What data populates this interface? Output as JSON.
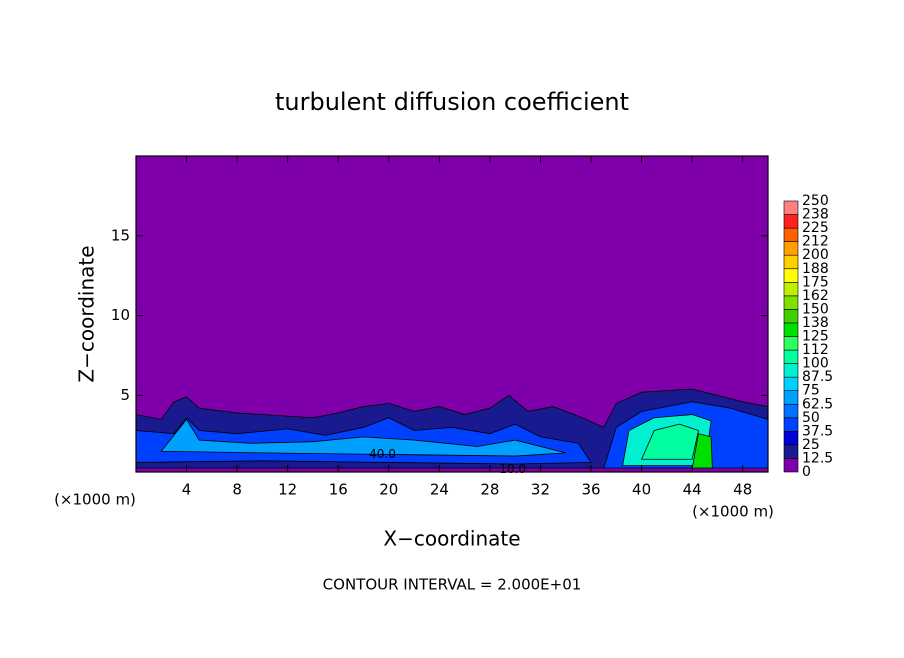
{
  "chart_data": {
    "type": "contour",
    "title": "turbulent diffusion coefficient",
    "xlabel": "X−coordinate",
    "ylabel": "Z−coordinate",
    "x_unit": "(×1000 m)",
    "x_unit_right": "(×1000 m)",
    "note": "CONTOUR INTERVAL = 2.000E+01",
    "xlim": [
      0,
      50
    ],
    "xticks": [
      4,
      8,
      12,
      16,
      20,
      24,
      28,
      32,
      36,
      40,
      44,
      48
    ],
    "ylim": [
      0.2,
      20
    ],
    "yticks": [
      5,
      10,
      15
    ],
    "background_level": 0,
    "colorbar_ticks": [
      0,
      12.5,
      25,
      37.5,
      50,
      62.5,
      75,
      87.5,
      100,
      {
        "value": 112.5,
        "label": "112"
      },
      125,
      {
        "value": 137.5,
        "label": "138"
      },
      150,
      {
        "value": 162.5,
        "label": "162"
      },
      175,
      {
        "value": 187.5,
        "label": "188"
      },
      200,
      {
        "value": 212.5,
        "label": "212"
      },
      225,
      {
        "value": 237.5,
        "label": "238"
      },
      250
    ],
    "colors": [
      "#7f00aa",
      "#1a1a90",
      "#0000d8",
      "#0040ff",
      "#0070ff",
      "#00a0ff",
      "#00d0ff",
      "#00f0d0",
      "#00ffa0",
      "#30ff60",
      "#00e000",
      "#40d000",
      "#80e000",
      "#c0f000",
      "#ffff00",
      "#ffd000",
      "#ffa000",
      "#ff6000",
      "#ff2020",
      "#ff8080"
    ],
    "regions": [
      {
        "level": 12.5,
        "points": [
          [
            0,
            0.3
          ],
          [
            0,
            3.8
          ],
          [
            2,
            3.5
          ],
          [
            3,
            4.6
          ],
          [
            4,
            4.9
          ],
          [
            5,
            4.2
          ],
          [
            8,
            3.9
          ],
          [
            12,
            3.7
          ],
          [
            14,
            3.6
          ],
          [
            16,
            3.9
          ],
          [
            18,
            4.3
          ],
          [
            20,
            4.5
          ],
          [
            22,
            4.0
          ],
          [
            24,
            4.3
          ],
          [
            26,
            3.8
          ],
          [
            28,
            4.2
          ],
          [
            29.5,
            5
          ],
          [
            31,
            4.0
          ],
          [
            33,
            4.3
          ],
          [
            35,
            3.7
          ],
          [
            37,
            3.0
          ],
          [
            38,
            4.5
          ],
          [
            40,
            5.2
          ],
          [
            44,
            5.4
          ],
          [
            46,
            5.0
          ],
          [
            48,
            4.6
          ],
          [
            50,
            4.3
          ],
          [
            50,
            0.3
          ]
        ]
      },
      {
        "level": 37.5,
        "points": [
          [
            0,
            0.8
          ],
          [
            0,
            2.8
          ],
          [
            3,
            2.6
          ],
          [
            4,
            3.6
          ],
          [
            5,
            2.8
          ],
          [
            8,
            2.6
          ],
          [
            12,
            2.9
          ],
          [
            15,
            2.5
          ],
          [
            18,
            3.0
          ],
          [
            20,
            3.6
          ],
          [
            22,
            2.8
          ],
          [
            25,
            3.0
          ],
          [
            28,
            2.6
          ],
          [
            30,
            3.2
          ],
          [
            32,
            2.4
          ],
          [
            35,
            2.0
          ],
          [
            36,
            0.8
          ],
          [
            30,
            0.7
          ],
          [
            20,
            0.8
          ],
          [
            10,
            0.9
          ]
        ]
      },
      {
        "level": 62.5,
        "points": [
          [
            2,
            1.5
          ],
          [
            4,
            3.5
          ],
          [
            5,
            2.2
          ],
          [
            9,
            2.0
          ],
          [
            14,
            2.1
          ],
          [
            18,
            2.4
          ],
          [
            22,
            2.2
          ],
          [
            27,
            1.8
          ],
          [
            30,
            2.2
          ],
          [
            34,
            1.4
          ],
          [
            30,
            1.2
          ],
          [
            20,
            1.3
          ],
          [
            10,
            1.4
          ]
        ]
      },
      {
        "level": 37.5,
        "points": [
          [
            37,
            0.4
          ],
          [
            38,
            3.0
          ],
          [
            40,
            4.0
          ],
          [
            44,
            4.6
          ],
          [
            47,
            4.2
          ],
          [
            50,
            3.5
          ],
          [
            50,
            0.4
          ]
        ]
      },
      {
        "level": 87.5,
        "points": [
          [
            38.5,
            0.6
          ],
          [
            39,
            2.8
          ],
          [
            41,
            3.6
          ],
          [
            44,
            3.8
          ],
          [
            45.5,
            3.4
          ],
          [
            45,
            0.6
          ]
        ]
      },
      {
        "level": 100,
        "points": [
          [
            40,
            1.0
          ],
          [
            41,
            2.8
          ],
          [
            43,
            3.2
          ],
          [
            44.5,
            2.8
          ],
          [
            44,
            1.0
          ]
        ]
      },
      {
        "level": 125,
        "points": [
          [
            44,
            0.4
          ],
          [
            44.5,
            2.6
          ],
          [
            45.5,
            2.4
          ],
          [
            45.6,
            0.4
          ]
        ]
      },
      {
        "level": 0,
        "points": [
          [
            0,
            0.2
          ],
          [
            50,
            0.2
          ],
          [
            50,
            0.45
          ],
          [
            0,
            0.45
          ]
        ]
      }
    ],
    "contour_labels": [
      {
        "label": "40.0",
        "x": 19.5,
        "z": 1.3
      },
      {
        "label": "10.0",
        "x": 29.8,
        "z": 0.35
      }
    ]
  }
}
